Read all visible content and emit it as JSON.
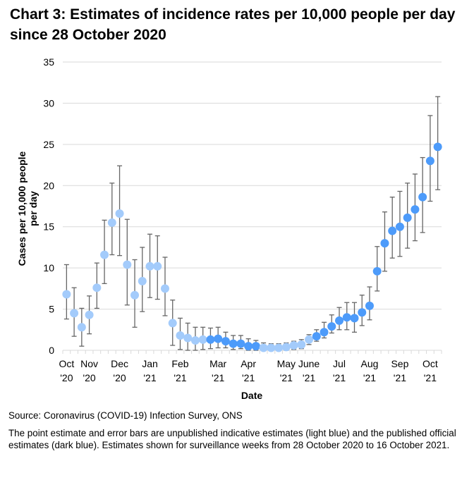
{
  "title": "Chart 3: Estimates of incidence rates per 10,000 people per day since 28 October 2020",
  "source": "Source: Coronavirus (COVID-19) Infection Survey, ONS",
  "note": "The point estimate and error bars are unpublished indicative estimates (light blue) and the published official estimates (dark blue).  Estimates shown for surveillance weeks from 28 October 2020 to 16 October 2021.",
  "colors": {
    "light": "#a3cbfb",
    "dark": "#4d9bfa",
    "error_bar": "#666666",
    "grid": "#d9d9d9"
  },
  "chart_data": {
    "type": "scatter",
    "title": "Chart 3: Estimates of incidence rates per 10,000 people per day since 28 October 2020",
    "xlabel": "Date",
    "ylabel": "Cases per 10,000 people per day",
    "ylim": [
      0,
      35
    ],
    "yticks": [
      0,
      5,
      10,
      15,
      20,
      25,
      30,
      35
    ],
    "grid": true,
    "xtick_labels": [
      {
        "label": [
          "Oct",
          "'20"
        ],
        "index": 0
      },
      {
        "label": [
          "Nov",
          "'20"
        ],
        "index": 3
      },
      {
        "label": [
          "Dec",
          "'20"
        ],
        "index": 7
      },
      {
        "label": [
          "Jan",
          "'21"
        ],
        "index": 11
      },
      {
        "label": [
          "Feb",
          "'21"
        ],
        "index": 15
      },
      {
        "label": [
          "Mar",
          "'21"
        ],
        "index": 20
      },
      {
        "label": [
          "Apr",
          "'21"
        ],
        "index": 24
      },
      {
        "label": [
          "May",
          "'21"
        ],
        "index": 29
      },
      {
        "label": [
          "June",
          "'21"
        ],
        "index": 32
      },
      {
        "label": [
          "Jul",
          "'21"
        ],
        "index": 36
      },
      {
        "label": [
          "Aug",
          "'21"
        ],
        "index": 40
      },
      {
        "label": [
          "Sep",
          "'21"
        ],
        "index": 44
      },
      {
        "label": [
          "Oct",
          "'21"
        ],
        "index": 48
      }
    ],
    "series": [
      {
        "name": "Unpublished indicative estimates (light blue)",
        "key": "light"
      },
      {
        "name": "Published official estimates (dark blue)",
        "key": "dark"
      }
    ],
    "points": [
      {
        "v": 6.8,
        "lo": 3.8,
        "hi": 10.4,
        "s": "light"
      },
      {
        "v": 4.5,
        "lo": 1.7,
        "hi": 7.6,
        "s": "light"
      },
      {
        "v": 2.8,
        "lo": 0.5,
        "hi": 5.1,
        "s": "light"
      },
      {
        "v": 4.3,
        "lo": 2.0,
        "hi": 6.6,
        "s": "light"
      },
      {
        "v": 7.6,
        "lo": 5.1,
        "hi": 10.6,
        "s": "light"
      },
      {
        "v": 11.6,
        "lo": 8.1,
        "hi": 15.8,
        "s": "light"
      },
      {
        "v": 15.5,
        "lo": 11.6,
        "hi": 20.3,
        "s": "light"
      },
      {
        "v": 16.6,
        "lo": 11.5,
        "hi": 22.4,
        "s": "light"
      },
      {
        "v": 10.4,
        "lo": 5.5,
        "hi": 15.9,
        "s": "light"
      },
      {
        "v": 6.7,
        "lo": 2.8,
        "hi": 11.0,
        "s": "light"
      },
      {
        "v": 8.4,
        "lo": 4.7,
        "hi": 12.5,
        "s": "light"
      },
      {
        "v": 10.2,
        "lo": 6.4,
        "hi": 14.1,
        "s": "light"
      },
      {
        "v": 10.2,
        "lo": 6.2,
        "hi": 13.9,
        "s": "light"
      },
      {
        "v": 7.5,
        "lo": 4.2,
        "hi": 11.3,
        "s": "light"
      },
      {
        "v": 3.3,
        "lo": 0.6,
        "hi": 6.1,
        "s": "light"
      },
      {
        "v": 1.8,
        "lo": 0.1,
        "hi": 3.9,
        "s": "light"
      },
      {
        "v": 1.5,
        "lo": 0.0,
        "hi": 3.3,
        "s": "light"
      },
      {
        "v": 1.2,
        "lo": 0.0,
        "hi": 2.8,
        "s": "light"
      },
      {
        "v": 1.3,
        "lo": 0.1,
        "hi": 2.8,
        "s": "light"
      },
      {
        "v": 1.3,
        "lo": 0.2,
        "hi": 2.7,
        "s": "dark"
      },
      {
        "v": 1.4,
        "lo": 0.3,
        "hi": 2.8,
        "s": "dark"
      },
      {
        "v": 1.1,
        "lo": 0.3,
        "hi": 2.2,
        "s": "dark"
      },
      {
        "v": 0.8,
        "lo": 0.1,
        "hi": 1.8,
        "s": "dark"
      },
      {
        "v": 0.8,
        "lo": 0.2,
        "hi": 1.8,
        "s": "dark"
      },
      {
        "v": 0.5,
        "lo": 0.0,
        "hi": 1.4,
        "s": "dark"
      },
      {
        "v": 0.5,
        "lo": 0.0,
        "hi": 1.2,
        "s": "dark"
      },
      {
        "v": 0.3,
        "lo": 0.0,
        "hi": 0.9,
        "s": "light"
      },
      {
        "v": 0.3,
        "lo": 0.0,
        "hi": 0.8,
        "s": "light"
      },
      {
        "v": 0.3,
        "lo": 0.0,
        "hi": 0.8,
        "s": "light"
      },
      {
        "v": 0.4,
        "lo": 0.0,
        "hi": 0.9,
        "s": "light"
      },
      {
        "v": 0.6,
        "lo": 0.1,
        "hi": 1.1,
        "s": "light"
      },
      {
        "v": 0.7,
        "lo": 0.2,
        "hi": 1.3,
        "s": "light"
      },
      {
        "v": 1.3,
        "lo": 0.7,
        "hi": 1.9,
        "s": "light"
      },
      {
        "v": 1.7,
        "lo": 1.1,
        "hi": 2.5,
        "s": "dark"
      },
      {
        "v": 2.2,
        "lo": 1.5,
        "hi": 3.4,
        "s": "dark"
      },
      {
        "v": 2.9,
        "lo": 2.1,
        "hi": 4.3,
        "s": "dark"
      },
      {
        "v": 3.6,
        "lo": 2.5,
        "hi": 5.2,
        "s": "dark"
      },
      {
        "v": 4.0,
        "lo": 2.5,
        "hi": 5.8,
        "s": "dark"
      },
      {
        "v": 3.9,
        "lo": 2.2,
        "hi": 5.8,
        "s": "dark"
      },
      {
        "v": 4.6,
        "lo": 3.0,
        "hi": 6.7,
        "s": "dark"
      },
      {
        "v": 5.4,
        "lo": 3.7,
        "hi": 7.7,
        "s": "dark"
      },
      {
        "v": 9.6,
        "lo": 7.2,
        "hi": 12.6,
        "s": "dark"
      },
      {
        "v": 13.0,
        "lo": 9.6,
        "hi": 16.8,
        "s": "dark"
      },
      {
        "v": 14.5,
        "lo": 11.2,
        "hi": 18.6,
        "s": "dark"
      },
      {
        "v": 15.0,
        "lo": 11.4,
        "hi": 19.3,
        "s": "dark"
      },
      {
        "v": 16.1,
        "lo": 12.4,
        "hi": 20.3,
        "s": "dark"
      },
      {
        "v": 17.1,
        "lo": 13.3,
        "hi": 21.4,
        "s": "dark"
      },
      {
        "v": 18.6,
        "lo": 14.3,
        "hi": 23.4,
        "s": "dark"
      },
      {
        "v": 23.0,
        "lo": 18.1,
        "hi": 28.5,
        "s": "dark"
      },
      {
        "v": 24.7,
        "lo": 19.5,
        "hi": 30.8,
        "s": "dark"
      }
    ]
  }
}
